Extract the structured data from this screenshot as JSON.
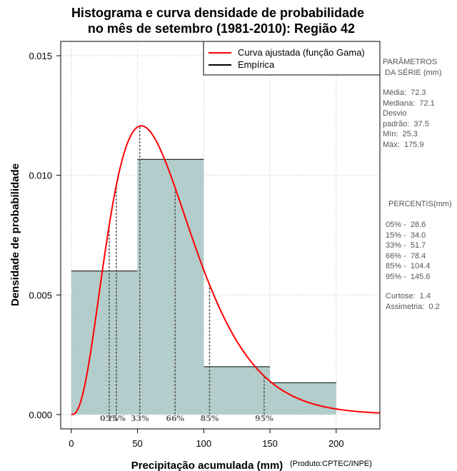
{
  "chart_data": {
    "type": "histogram",
    "title_line1": "Histograma e curva densidade de probabilidade",
    "title_line2": "no mês de setembro (1981-2010): Região 42",
    "xlabel": "Precipitação acumulada (mm)",
    "ylabel": "Densidade de probabilidade",
    "credit": "(Produto:CPTEC/INPE)",
    "xlim": [
      -8,
      233
    ],
    "ylim": [
      -0.0006,
      0.0156
    ],
    "x_ticks": [
      0,
      50,
      100,
      150,
      200
    ],
    "x_tick_labels": [
      "0",
      "50",
      "100",
      "150",
      "200"
    ],
    "y_ticks": [
      0.0,
      0.005,
      0.01,
      0.015
    ],
    "y_tick_labels": [
      "0.000",
      "0.005",
      "0.010",
      "0.015"
    ],
    "grid": true,
    "bins": [
      {
        "start": 0,
        "end": 50,
        "density": 0.006
      },
      {
        "start": 50,
        "end": 100,
        "density": 0.01067
      },
      {
        "start": 100,
        "end": 150,
        "density": 0.002
      },
      {
        "start": 150,
        "end": 200,
        "density": 0.00133
      }
    ],
    "gamma_fit": {
      "shape": 3.72,
      "scale": 19.44,
      "x_max": 233
    },
    "percentile_markers": [
      {
        "label": "05%",
        "x": 28.6
      },
      {
        "label": "15%",
        "x": 34.0
      },
      {
        "label": "33%",
        "x": 51.7
      },
      {
        "label": "66%",
        "x": 78.4
      },
      {
        "label": "85%",
        "x": 104.4
      },
      {
        "label": "95%",
        "x": 145.6
      }
    ],
    "legend": {
      "position": "top-right",
      "entries": [
        {
          "label": "Curva ajustada (função Gama)",
          "color": "#ff0000"
        },
        {
          "label": "Empírica",
          "color": "#000000"
        }
      ]
    },
    "colors": {
      "bar_fill": "#b3cccc",
      "curve": "#ff0000",
      "grid": "#bdbdbd",
      "percentile_line": "#555555"
    }
  },
  "side_panel": {
    "params_header": "PARÂMETROS\n DA SÉRIE (mm)",
    "stats": "Média:  72.3\nMediana:  72.1\nDesvio\npadrão:  37.5\nMín:  25.3\nMáx:  175.9",
    "percentis_header": "PERCENTIS(mm)",
    "percentis": "05% -  28.6\n15% -  34.0\n33% -  51.7\n66% -  78.4\n85% -  104.4\n95% -  145.6",
    "extra": "Curtose:  1.4\nAssimetria:  0.2"
  }
}
